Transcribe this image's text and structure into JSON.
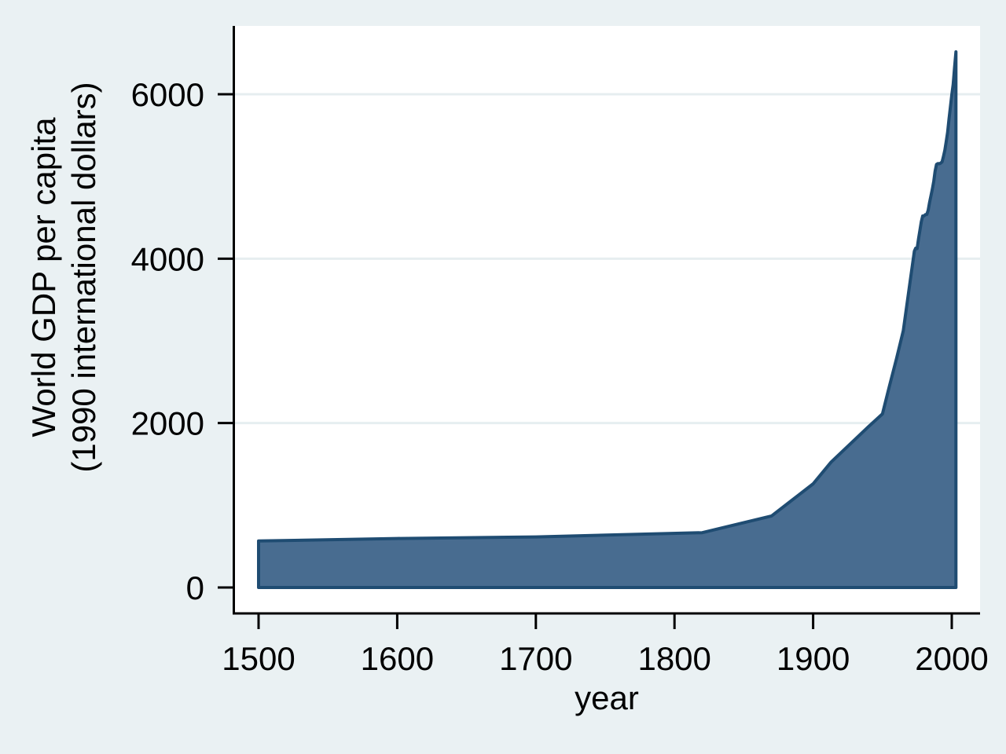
{
  "figure": {
    "background_color": "#EAF1F3",
    "plot_background_color": "#FFFFFF",
    "grid_color": "#E6EEF0",
    "axis_color": "#000000",
    "text_color": "#000000"
  },
  "chart_data": {
    "type": "area",
    "title": "",
    "xlabel": "year",
    "ylabel_lines": [
      "World GDP per capita",
      "(1990 international dollars)"
    ],
    "x_ticks": [
      "1500",
      "1600",
      "1700",
      "1800",
      "1900",
      "2000"
    ],
    "x_tick_values": [
      1500,
      1600,
      1700,
      1800,
      1900,
      2000
    ],
    "y_ticks": [
      "0",
      "2000",
      "4000",
      "6000"
    ],
    "y_tick_values": [
      0,
      2000,
      4000,
      6000
    ],
    "grid_values": [
      2000,
      4000,
      6000
    ],
    "grid": "horizontal",
    "legend": "none",
    "xlim": [
      1481,
      2020
    ],
    "ylim": [
      -320,
      6840
    ],
    "area_fill_color": "#486C90",
    "area_line_color": "#1F4C72",
    "series": [
      {
        "name": "World GDP per capita (1990 international dollars)",
        "points": [
          [
            1500,
            566
          ],
          [
            1600,
            596
          ],
          [
            1700,
            615
          ],
          [
            1820,
            667
          ],
          [
            1870,
            870
          ],
          [
            1900,
            1261
          ],
          [
            1913,
            1526
          ],
          [
            1940,
            1958
          ],
          [
            1950,
            2111
          ],
          [
            1955,
            2448
          ],
          [
            1960,
            2773
          ],
          [
            1965,
            3123
          ],
          [
            1970,
            3729
          ],
          [
            1973,
            4091
          ],
          [
            1974,
            4127
          ],
          [
            1975,
            4123
          ],
          [
            1976,
            4242
          ],
          [
            1977,
            4340
          ],
          [
            1978,
            4447
          ],
          [
            1979,
            4519
          ],
          [
            1980,
            4520
          ],
          [
            1981,
            4536
          ],
          [
            1982,
            4537
          ],
          [
            1983,
            4590
          ],
          [
            1984,
            4686
          ],
          [
            1985,
            4764
          ],
          [
            1986,
            4847
          ],
          [
            1987,
            4942
          ],
          [
            1988,
            5065
          ],
          [
            1989,
            5147
          ],
          [
            1990,
            5157
          ],
          [
            1991,
            5154
          ],
          [
            1992,
            5162
          ],
          [
            1993,
            5178
          ],
          [
            1994,
            5242
          ],
          [
            1995,
            5320
          ],
          [
            1996,
            5422
          ],
          [
            1997,
            5536
          ],
          [
            1998,
            5700
          ],
          [
            1999,
            5840
          ],
          [
            2000,
            5990
          ],
          [
            2001,
            6120
          ],
          [
            2002,
            6320
          ],
          [
            2003,
            6516
          ]
        ]
      }
    ]
  }
}
